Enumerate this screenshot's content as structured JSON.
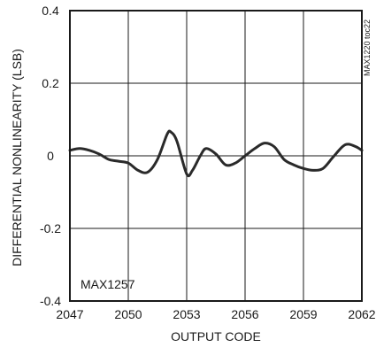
{
  "chart_data": {
    "type": "line",
    "title": "",
    "xlabel": "OUTPUT CODE",
    "ylabel": "DIFFERENTIAL NONLINEARITY (LSB)",
    "xlim": [
      2047,
      2062
    ],
    "ylim": [
      -0.4,
      0.4
    ],
    "x_ticks": [
      "2047",
      "2050",
      "2053",
      "2056",
      "2059",
      "2062"
    ],
    "y_ticks": [
      "0.4",
      "0.2",
      "0",
      "-0.2",
      "-0.4"
    ],
    "grid": true,
    "annotation": "MAX1257",
    "figure_ref": "MAX1220 toc22",
    "series": [
      {
        "x": [
          2047,
          2047.5,
          2048,
          2048.5,
          2049,
          2049.5,
          2050,
          2050.5,
          2051,
          2051.5,
          2052,
          2052.2,
          2052.5,
          2053,
          2053.3,
          2053.7,
          2054,
          2054.5,
          2055,
          2055.5,
          2056,
          2056.5,
          2057,
          2057.5,
          2058,
          2058.5,
          2059,
          2059.5,
          2060,
          2060.5,
          2061,
          2061.3,
          2061.7,
          2062
        ],
        "y": [
          0.015,
          0.02,
          0.015,
          0.005,
          -0.01,
          -0.015,
          -0.02,
          -0.04,
          -0.045,
          -0.01,
          0.06,
          0.065,
          0.04,
          -0.05,
          -0.04,
          0.0,
          0.02,
          0.005,
          -0.025,
          -0.02,
          0.0,
          0.02,
          0.035,
          0.025,
          -0.01,
          -0.025,
          -0.035,
          -0.04,
          -0.035,
          -0.005,
          0.025,
          0.032,
          0.025,
          0.015
        ],
        "color": "#2a2a2a"
      }
    ]
  }
}
